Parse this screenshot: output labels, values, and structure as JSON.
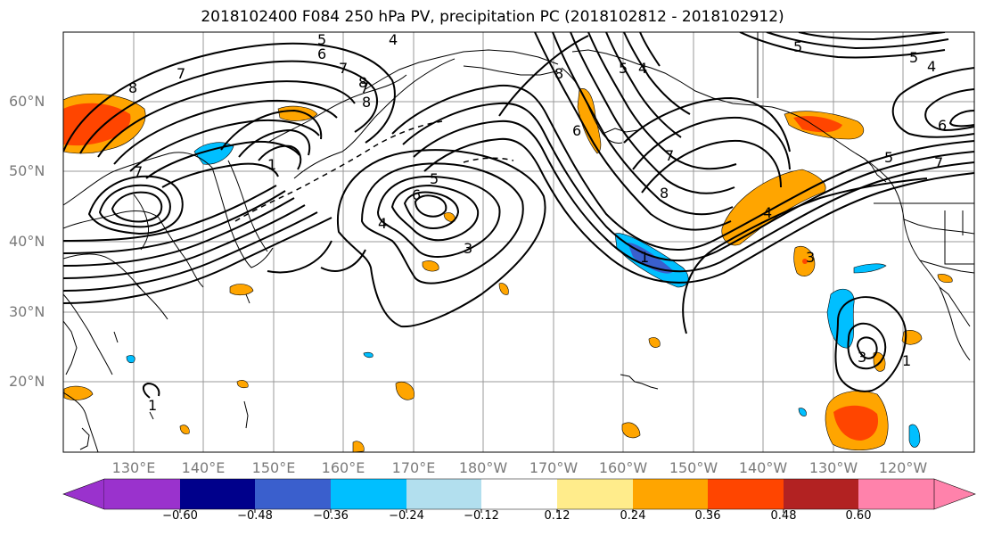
{
  "title": "2018102400 F084 250 hPa PV, precipitation PC (2018102812 - 2018102912)",
  "lat_labels": [
    "60°N",
    "50°N",
    "40°N",
    "30°N",
    "20°N"
  ],
  "lon_labels": [
    "130°E",
    "140°E",
    "150°E",
    "160°E",
    "170°E",
    "180°W",
    "170°W",
    "160°W",
    "150°W",
    "140°W",
    "130°W",
    "120°W"
  ],
  "colorbar": {
    "ticks": [
      "−0.60",
      "−0.48",
      "−0.36",
      "−0.24",
      "−0.12",
      "0.12",
      "0.24",
      "0.36",
      "0.48",
      "0.60"
    ],
    "colors": [
      "#9a32cd",
      "#00008b",
      "#3a5fcd",
      "#00bfff",
      "#b2dfee",
      "#ffffff",
      "#ffec8b",
      "#ffa500",
      "#ff4500",
      "#b22222",
      "#ff82ab"
    ]
  },
  "contour_labels": {
    "c1": "5",
    "c2": "6",
    "c3": "7",
    "c4": "8",
    "c5": "4",
    "c6": "7",
    "c7": "8",
    "c8": "7",
    "c9": "1",
    "c10": "7",
    "c11": "8",
    "c12": "6",
    "c13": "5",
    "c14": "4",
    "c15": "3",
    "c16": "8",
    "c17": "6",
    "c18": "4",
    "c19": "7",
    "c20": "8",
    "c21": "5",
    "c22": "4",
    "c23": "3",
    "c24": "6",
    "c25": "5",
    "c26": "7",
    "c27": "1",
    "c28": "3",
    "c29": "1",
    "c30": "1",
    "c31": "5",
    "c32": "5",
    "c33": "4"
  }
}
